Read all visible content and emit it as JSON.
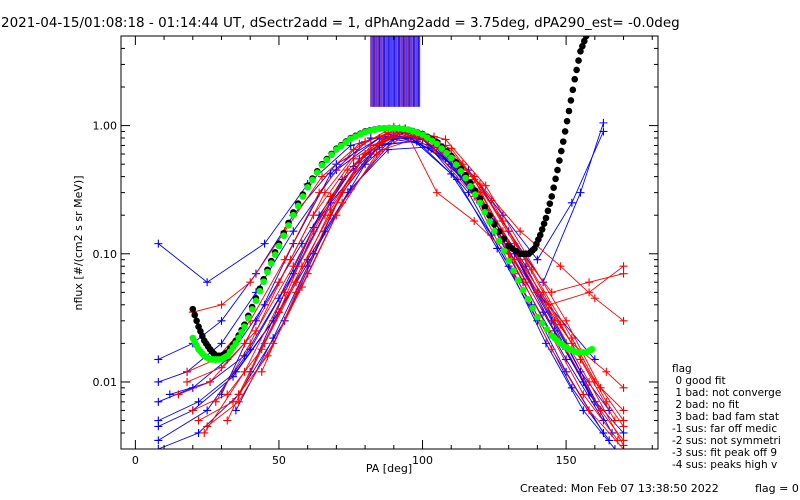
{
  "chart_data": {
    "type": "scatter",
    "title": "2021-04-15/01:08:18 - 01:14:44 UT, dSectr2add = 1, dPhAng2add = 3.75deg, dPA290_est=  -0.0deg",
    "xlabel": "PA [deg]",
    "ylabel": "nflux [#/(cm2 s sr MeV)]",
    "xlim": [
      -5,
      182
    ],
    "ylim": [
      0.003,
      5.0
    ],
    "y_scale": "log",
    "x_ticks": [
      0,
      50,
      100,
      150
    ],
    "x_tick_labels": [
      "0",
      "50",
      "100",
      "150"
    ],
    "y_ticks": [
      0.01,
      0.1,
      1.0
    ],
    "y_tick_labels": [
      "0.01",
      "0.10",
      "1.00"
    ],
    "grid": false,
    "colors": {
      "red_series": "#ff0000",
      "blue_series": "#0000ff",
      "fit_black": "#000000",
      "fit_green": "#00ff00",
      "purple_marks": "#800080"
    },
    "series": [
      {
        "color": "blue",
        "lines": [
          {
            "x": [
              8,
              25,
              45,
              60,
              75,
              88,
              100,
              112,
              125,
              140,
              160
            ],
            "y": [
              0.12,
              0.06,
              0.12,
              0.35,
              0.7,
              0.85,
              0.78,
              0.45,
              0.18,
              0.05,
              0.015
            ]
          },
          {
            "x": [
              8,
              20,
              30,
              42,
              55,
              70,
              85,
              95,
              108,
              120,
              135,
              150,
              163
            ],
            "y": [
              0.015,
              0.02,
              0.03,
              0.07,
              0.2,
              0.5,
              0.8,
              0.82,
              0.55,
              0.25,
              0.06,
              0.015,
              0.005
            ]
          },
          {
            "x": [
              8,
              18,
              30,
              42,
              55,
              70,
              85,
              100,
              115,
              130,
              145,
              158,
              170
            ],
            "y": [
              0.01,
              0.012,
              0.02,
              0.05,
              0.15,
              0.45,
              0.8,
              0.78,
              0.4,
              0.12,
              0.03,
              0.008,
              0.004
            ]
          },
          {
            "x": [
              8,
              20,
              32,
              45,
              58,
              72,
              86,
              98,
              110,
              125,
              140,
              155,
              165
            ],
            "y": [
              0.007,
              0.009,
              0.015,
              0.04,
              0.12,
              0.38,
              0.72,
              0.75,
              0.5,
              0.18,
              0.05,
              0.012,
              0.006
            ]
          },
          {
            "x": [
              8,
              22,
              35,
              50,
              62,
              75,
              88,
              102,
              118,
              132,
              146,
              160
            ],
            "y": [
              0.005,
              0.007,
              0.012,
              0.035,
              0.1,
              0.32,
              0.65,
              0.68,
              0.32,
              0.1,
              0.025,
              0.007
            ]
          },
          {
            "x": [
              8,
              20,
              34,
              48,
              60,
              74,
              90,
              104,
              120,
              136,
              150,
              162
            ],
            "y": [
              0.0045,
              0.006,
              0.011,
              0.03,
              0.09,
              0.3,
              0.78,
              0.7,
              0.28,
              0.08,
              0.02,
              0.006
            ]
          },
          {
            "x": [
              8,
              25,
              40,
              55,
              68,
              82,
              94,
              106,
              118,
              130,
              142,
              155,
              163
            ],
            "y": [
              0.0035,
              0.006,
              0.018,
              0.07,
              0.25,
              0.6,
              0.9,
              0.72,
              0.4,
              0.15,
              0.06,
              0.3,
              1.05
            ]
          },
          {
            "x": [
              8,
              22,
              36,
              52,
              66,
              80,
              92,
              104,
              116,
              128,
              140,
              152,
              163
            ],
            "y": [
              0.003,
              0.004,
              0.008,
              0.03,
              0.15,
              0.5,
              0.88,
              0.75,
              0.45,
              0.2,
              0.09,
              0.25,
              0.9
            ]
          },
          {
            "x": [
              30,
              42,
              55,
              68,
              82,
              96,
              110,
              124,
              138,
              150,
              163
            ],
            "y": [
              0.008,
              0.03,
              0.12,
              0.42,
              0.8,
              0.8,
              0.42,
              0.14,
              0.04,
              0.012,
              0.004
            ]
          },
          {
            "x": [
              35,
              48,
              60,
              72,
              85,
              98,
              112,
              126,
              140,
              152,
              165
            ],
            "y": [
              0.006,
              0.022,
              0.08,
              0.3,
              0.7,
              0.76,
              0.38,
              0.11,
              0.03,
              0.009,
              0.0035
            ]
          },
          {
            "x": [
              40,
              52,
              64,
              78,
              90,
              103,
              116,
              130,
              143,
              156,
              167
            ],
            "y": [
              0.012,
              0.05,
              0.2,
              0.55,
              0.84,
              0.66,
              0.3,
              0.08,
              0.02,
              0.006,
              0.003
            ]
          },
          {
            "x": [
              12,
              26,
              38,
              50,
              62,
              76,
              88,
              100,
              114,
              128,
              142,
              156,
              166
            ],
            "y": [
              0.008,
              0.01,
              0.016,
              0.045,
              0.16,
              0.48,
              0.82,
              0.8,
              0.42,
              0.13,
              0.035,
              0.01,
              0.004
            ]
          }
        ]
      },
      {
        "color": "red",
        "lines": [
          {
            "x": [
              20,
              30,
              40,
              52,
              65,
              78,
              92,
              105,
              118,
              132,
              145,
              158,
              170
            ],
            "y": [
              0.035,
              0.04,
              0.06,
              0.15,
              0.4,
              0.72,
              0.95,
              0.75,
              0.4,
              0.12,
              0.05,
              0.06,
              0.07
            ]
          },
          {
            "x": [
              18,
              28,
              40,
              52,
              64,
              76,
              90,
              104,
              118,
              130,
              144,
              158,
              170
            ],
            "y": [
              0.012,
              0.015,
              0.03,
              0.09,
              0.3,
              0.65,
              0.98,
              0.82,
              0.38,
              0.12,
              0.04,
              0.05,
              0.08
            ]
          },
          {
            "x": [
              15,
              26,
              38,
              50,
              62,
              76,
              92,
              106,
              120,
              134,
              148,
              160,
              170
            ],
            "y": [
              0.008,
              0.01,
              0.02,
              0.06,
              0.2,
              0.55,
              0.92,
              0.7,
              0.3,
              0.09,
              0.028,
              0.01,
              0.006
            ]
          },
          {
            "x": [
              20,
              32,
              44,
              56,
              68,
              80,
              94,
              108,
              122,
              136,
              150,
              162,
              170
            ],
            "y": [
              0.006,
              0.008,
              0.018,
              0.06,
              0.22,
              0.6,
              0.95,
              0.78,
              0.34,
              0.1,
              0.03,
              0.009,
              0.005
            ]
          },
          {
            "x": [
              22,
              34,
              46,
              58,
              70,
              84,
              96,
              110,
              124,
              138,
              152,
              164,
              170
            ],
            "y": [
              0.005,
              0.007,
              0.016,
              0.055,
              0.2,
              0.6,
              0.9,
              0.66,
              0.26,
              0.075,
              0.022,
              0.007,
              0.0045
            ]
          },
          {
            "x": [
              25,
              36,
              48,
              60,
              72,
              86,
              100,
              114,
              128,
              142,
              155,
              167
            ],
            "y": [
              0.0045,
              0.007,
              0.02,
              0.07,
              0.25,
              0.65,
              0.82,
              0.5,
              0.18,
              0.05,
              0.015,
              0.005
            ]
          },
          {
            "x": [
              18,
              30,
              42,
              55,
              68,
              82,
              96,
              108,
              120,
              134,
              148,
              160,
              170
            ],
            "y": [
              0.01,
              0.013,
              0.025,
              0.08,
              0.28,
              0.7,
              0.9,
              0.7,
              0.35,
              0.15,
              0.08,
              0.045,
              0.03
            ]
          },
          {
            "x": [
              28,
              40,
              54,
              66,
              80,
              94,
              108,
              122,
              136,
              150,
              162,
              170
            ],
            "y": [
              0.007,
              0.02,
              0.09,
              0.3,
              0.75,
              0.95,
              0.6,
              0.22,
              0.06,
              0.018,
              0.006,
              0.0035
            ]
          },
          {
            "x": [
              32,
              45,
              58,
              72,
              86,
              100,
              114,
              128,
              140,
              152,
              164,
              170
            ],
            "y": [
              0.005,
              0.02,
              0.08,
              0.3,
              0.78,
              0.85,
              0.45,
              0.15,
              0.05,
              0.02,
              0.012,
              0.009
            ]
          },
          {
            "x": [
              24,
              38,
              52,
              66,
              80,
              94,
              105,
              118,
              132,
              146,
              158,
              170
            ],
            "y": [
              0.004,
              0.012,
              0.05,
              0.2,
              0.6,
              0.92,
              0.3,
              0.18,
              0.09,
              0.03,
              0.01,
              0.0032
            ]
          },
          {
            "x": [
              36,
              50,
              62,
              74,
              88,
              102,
              116,
              130,
              144,
              156,
              168
            ],
            "y": [
              0.008,
              0.035,
              0.15,
              0.45,
              0.88,
              0.78,
              0.38,
              0.1,
              0.025,
              0.008,
              0.0035
            ]
          },
          {
            "x": [
              44,
              56,
              68,
              80,
              92,
              104,
              118,
              132,
              145,
              158,
              170
            ],
            "y": [
              0.012,
              0.05,
              0.2,
              0.6,
              0.92,
              0.65,
              0.28,
              0.07,
              0.018,
              0.006,
              0.003
            ]
          }
        ]
      }
    ],
    "fit_curves": [
      {
        "color": "black",
        "x": [
          20,
          22,
          24,
          26,
          28,
          30,
          32,
          35,
          38,
          42,
          46,
          50,
          55,
          60,
          65,
          70,
          75,
          80,
          85,
          90,
          95,
          100,
          105,
          110,
          115,
          120,
          125,
          130,
          134,
          137,
          139,
          141,
          143,
          145,
          147,
          149,
          151,
          153,
          155,
          157
        ],
        "y": [
          0.037,
          0.027,
          0.021,
          0.018,
          0.016,
          0.016,
          0.017,
          0.021,
          0.028,
          0.045,
          0.075,
          0.12,
          0.21,
          0.34,
          0.5,
          0.66,
          0.8,
          0.9,
          0.95,
          0.96,
          0.93,
          0.86,
          0.74,
          0.58,
          0.41,
          0.27,
          0.17,
          0.115,
          0.1,
          0.1,
          0.11,
          0.14,
          0.19,
          0.28,
          0.45,
          0.75,
          1.3,
          2.3,
          3.8,
          5.0
        ]
      },
      {
        "color": "green",
        "x": [
          20,
          22,
          24,
          26,
          28,
          30,
          32,
          35,
          38,
          42,
          46,
          50,
          55,
          60,
          65,
          70,
          75,
          80,
          85,
          90,
          95,
          100,
          105,
          110,
          115,
          120,
          125,
          130,
          135,
          140,
          145,
          148,
          151,
          154,
          157,
          159
        ],
        "y": [
          0.022,
          0.018,
          0.016,
          0.015,
          0.015,
          0.015,
          0.016,
          0.02,
          0.027,
          0.043,
          0.072,
          0.115,
          0.2,
          0.33,
          0.49,
          0.65,
          0.79,
          0.89,
          0.95,
          0.96,
          0.93,
          0.85,
          0.72,
          0.56,
          0.39,
          0.25,
          0.15,
          0.088,
          0.052,
          0.032,
          0.023,
          0.02,
          0.018,
          0.017,
          0.017,
          0.018
        ]
      }
    ],
    "vertical_marks": {
      "x_start": 82,
      "x_end": 99,
      "count": 40,
      "y_from": 1.4,
      "y_to": 5.0
    },
    "legend": {
      "title": "flag",
      "entries": [
        " 0 good fit",
        " 1 bad: not converge",
        " 2 bad: no fit",
        " 3 bad: bad fam stat",
        "-1 sus: far off medic",
        "-2 sus: not symmetri",
        "-3 sus: fit peak off 9",
        "-4 sus: peaks high v"
      ]
    },
    "footer": {
      "created": "Created: Mon Feb 07 13:38:50 2022",
      "flag": "flag = 0"
    }
  }
}
